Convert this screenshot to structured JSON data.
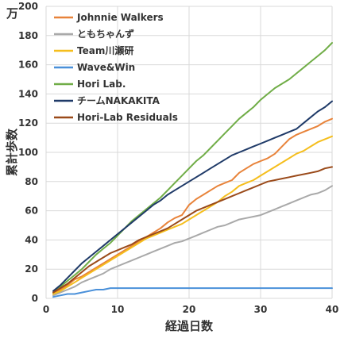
{
  "chart_data": {
    "type": "line",
    "xlabel": "経過日数",
    "ylabel": "累計歩数",
    "yunit": "万",
    "xlim": [
      0,
      40
    ],
    "ylim": [
      0,
      200
    ],
    "xticks": [
      0,
      10,
      20,
      30,
      40
    ],
    "yticks": [
      0,
      20,
      40,
      60,
      80,
      100,
      120,
      140,
      160,
      180,
      200
    ],
    "grid": true,
    "legend_position": "top-left",
    "x": [
      1,
      2,
      3,
      4,
      5,
      6,
      7,
      8,
      9,
      10,
      11,
      12,
      13,
      14,
      15,
      16,
      17,
      18,
      19,
      20,
      21,
      22,
      23,
      24,
      25,
      26,
      27,
      28,
      29,
      30,
      31,
      32,
      33,
      34,
      35,
      36,
      37,
      38,
      39,
      40
    ],
    "series": [
      {
        "name": "Johnnie Walkers",
        "color": "#e8833a",
        "values": [
          3,
          6,
          9,
          13,
          15,
          18,
          21,
          24,
          27,
          30,
          33,
          36,
          39,
          42,
          45,
          48,
          52,
          55,
          57,
          64,
          68,
          71,
          74,
          77,
          79,
          81,
          86,
          89,
          92,
          94,
          96,
          99,
          104,
          109,
          112,
          114,
          116,
          118,
          121,
          123
        ]
      },
      {
        "name": "ともちゃんず",
        "color": "#a9a9a9",
        "values": [
          2,
          4,
          6,
          8,
          11,
          13,
          15,
          17,
          20,
          22,
          24,
          26,
          28,
          30,
          32,
          34,
          36,
          38,
          39,
          41,
          43,
          45,
          47,
          49,
          50,
          52,
          54,
          55,
          56,
          57,
          59,
          61,
          63,
          65,
          67,
          69,
          71,
          72,
          74,
          77
        ]
      },
      {
        "name": "Team川瀬研",
        "color": "#f5be1d",
        "values": [
          3,
          5,
          8,
          11,
          14,
          17,
          20,
          23,
          26,
          29,
          32,
          35,
          38,
          41,
          43,
          45,
          47,
          49,
          51,
          54,
          57,
          60,
          63,
          66,
          70,
          73,
          77,
          79,
          81,
          84,
          87,
          90,
          93,
          96,
          99,
          101,
          104,
          107,
          109,
          111
        ]
      },
      {
        "name": "Wave&Win",
        "color": "#4a90d9",
        "values": [
          1,
          2,
          3,
          3,
          4,
          5,
          6,
          6,
          7,
          7,
          7,
          7,
          7,
          7,
          7,
          7,
          7,
          7,
          7,
          7,
          7,
          7,
          7,
          7,
          7,
          7,
          7,
          7,
          7,
          7,
          7,
          7,
          7,
          7,
          7,
          7,
          7,
          7,
          7,
          7
        ]
      },
      {
        "name": "Hori Lab.",
        "color": "#70ad47",
        "values": [
          4,
          8,
          12,
          16,
          20,
          25,
          30,
          34,
          38,
          43,
          48,
          53,
          57,
          61,
          65,
          69,
          74,
          79,
          84,
          89,
          94,
          98,
          103,
          108,
          113,
          118,
          123,
          127,
          131,
          136,
          140,
          144,
          147,
          150,
          154,
          158,
          162,
          166,
          170,
          175
        ]
      },
      {
        "name": "チームNAKAKITA",
        "color": "#1f3a68",
        "values": [
          5,
          9,
          14,
          19,
          24,
          28,
          32,
          36,
          40,
          44,
          48,
          52,
          56,
          60,
          64,
          67,
          71,
          74,
          77,
          80,
          83,
          86,
          89,
          92,
          95,
          98,
          100,
          102,
          104,
          106,
          108,
          110,
          112,
          114,
          116,
          120,
          124,
          128,
          131,
          135
        ]
      },
      {
        "name": "Hori-Lab Residuals",
        "color": "#9a4a1a",
        "values": [
          4,
          7,
          10,
          14,
          18,
          22,
          25,
          28,
          31,
          33,
          35,
          37,
          40,
          42,
          44,
          46,
          48,
          51,
          54,
          57,
          60,
          62,
          64,
          66,
          68,
          70,
          72,
          74,
          76,
          78,
          80,
          81,
          82,
          83,
          84,
          85,
          86,
          87,
          89,
          90
        ]
      }
    ]
  }
}
